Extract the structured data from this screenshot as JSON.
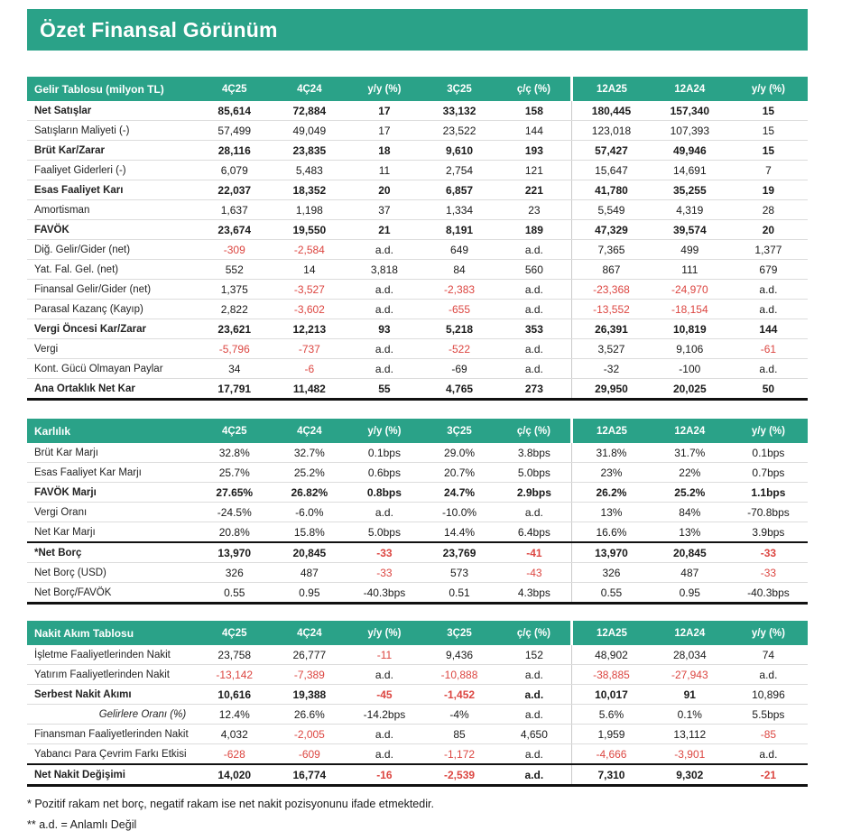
{
  "title": "Özet Finansal Görünüm",
  "colors": {
    "accent_teal": "#2AA288",
    "negative_red": "#DC4641",
    "border_dark": "#111111",
    "border_light": "#DCDCDC"
  },
  "columns": [
    "4Ç25",
    "4Ç24",
    "y/y (%)",
    "3Ç25",
    "ç/ç (%)",
    "12A25",
    "12A24",
    "y/y (%)"
  ],
  "tables": [
    {
      "name": "Gelir Tablosu (milyon TL)",
      "rows": [
        {
          "label": "Net Satışlar",
          "bold": true,
          "values": [
            "85,614",
            "72,884",
            "17",
            "33,132",
            "158",
            "180,445",
            "157,340",
            "15"
          ]
        },
        {
          "label": "Satışların Maliyeti (-)",
          "values": [
            "57,499",
            "49,049",
            "17",
            "23,522",
            "144",
            "123,018",
            "107,393",
            "15"
          ]
        },
        {
          "label": "Brüt Kar/Zarar",
          "bold": true,
          "values": [
            "28,116",
            "23,835",
            "18",
            "9,610",
            "193",
            "57,427",
            "49,946",
            "15"
          ]
        },
        {
          "label": "Faaliyet Giderleri (-)",
          "values": [
            "6,079",
            "5,483",
            "11",
            "2,754",
            "121",
            "15,647",
            "14,691",
            "7"
          ]
        },
        {
          "label": "Esas Faaliyet Karı",
          "bold": true,
          "values": [
            "22,037",
            "18,352",
            "20",
            "6,857",
            "221",
            "41,780",
            "35,255",
            "19"
          ]
        },
        {
          "label": "Amortisman",
          "values": [
            "1,637",
            "1,198",
            "37",
            "1,334",
            "23",
            "5,549",
            "4,319",
            "28"
          ]
        },
        {
          "label": "FAVÖK",
          "bold": true,
          "values": [
            "23,674",
            "19,550",
            "21",
            "8,191",
            "189",
            "47,329",
            "39,574",
            "20"
          ]
        },
        {
          "label": "Diğ. Gelir/Gider (net)",
          "values": [
            "-309",
            "-2,584",
            "a.d.",
            "649",
            "a.d.",
            "7,365",
            "499",
            "1,377"
          ],
          "red": [
            0,
            1
          ]
        },
        {
          "label": "Yat. Fal. Gel. (net)",
          "values": [
            "552",
            "14",
            "3,818",
            "84",
            "560",
            "867",
            "111",
            "679"
          ]
        },
        {
          "label": "Finansal Gelir/Gider (net)",
          "values": [
            "1,375",
            "-3,527",
            "a.d.",
            "-2,383",
            "a.d.",
            "-23,368",
            "-24,970",
            "a.d."
          ],
          "red": [
            1,
            3,
            5,
            6
          ]
        },
        {
          "label": "Parasal Kazanç (Kayıp)",
          "values": [
            "2,822",
            "-3,602",
            "a.d.",
            "-655",
            "a.d.",
            "-13,552",
            "-18,154",
            "a.d."
          ],
          "red": [
            1,
            3,
            5,
            6
          ]
        },
        {
          "label": "Vergi Öncesi Kar/Zarar",
          "bold": true,
          "values": [
            "23,621",
            "12,213",
            "93",
            "5,218",
            "353",
            "26,391",
            "10,819",
            "144"
          ]
        },
        {
          "label": "Vergi",
          "values": [
            "-5,796",
            "-737",
            "a.d.",
            "-522",
            "a.d.",
            "3,527",
            "9,106",
            "-61"
          ],
          "red": [
            0,
            1,
            3,
            7
          ]
        },
        {
          "label": "Kont. Gücü Olmayan Paylar",
          "values": [
            "34",
            "-6",
            "a.d.",
            "-69",
            "a.d.",
            "-32",
            "-100",
            "a.d."
          ],
          "red": [
            1
          ]
        },
        {
          "label": "Ana Ortaklık Net Kar",
          "bold": true,
          "values": [
            "17,791",
            "11,482",
            "55",
            "4,765",
            "273",
            "29,950",
            "20,025",
            "50"
          ]
        }
      ]
    },
    {
      "name": "Karlılık",
      "rows": [
        {
          "label": "Brüt Kar Marjı",
          "values": [
            "32.8%",
            "32.7%",
            "0.1bps",
            "29.0%",
            "3.8bps",
            "31.8%",
            "31.7%",
            "0.1bps"
          ]
        },
        {
          "label": "Esas Faaliyet Kar Marjı",
          "values": [
            "25.7%",
            "25.2%",
            "0.6bps",
            "20.7%",
            "5.0bps",
            "23%",
            "22%",
            "0.7bps"
          ]
        },
        {
          "label": "FAVÖK Marjı",
          "bold": true,
          "values": [
            "27.65%",
            "26.82%",
            "0.8bps",
            "24.7%",
            "2.9bps",
            "26.2%",
            "25.2%",
            "1.1bps"
          ]
        },
        {
          "label": "Vergi Oranı",
          "values": [
            "-24.5%",
            "-6.0%",
            "a.d.",
            "-10.0%",
            "a.d.",
            "13%",
            "84%",
            "-70.8bps"
          ]
        },
        {
          "label": "Net Kar Marjı",
          "values": [
            "20.8%",
            "15.8%",
            "5.0bps",
            "14.4%",
            "6.4bps",
            "16.6%",
            "13%",
            "3.9bps"
          ]
        },
        {
          "label": "*Net Borç",
          "bold": true,
          "septop": true,
          "values": [
            "13,970",
            "20,845",
            "-33",
            "23,769",
            "-41",
            "13,970",
            "20,845",
            "-33"
          ],
          "red": [
            2,
            4,
            7
          ]
        },
        {
          "label": "Net Borç (USD)",
          "values": [
            "326",
            "487",
            "-33",
            "573",
            "-43",
            "326",
            "487",
            "-33"
          ],
          "red": [
            2,
            4,
            7
          ]
        },
        {
          "label": "Net Borç/FAVÖK",
          "values": [
            "0.55",
            "0.95",
            "-40.3bps",
            "0.51",
            "4.3bps",
            "0.55",
            "0.95",
            "-40.3bps"
          ]
        }
      ]
    },
    {
      "name": "Nakit Akım Tablosu",
      "rows": [
        {
          "label": "İşletme Faaliyetlerinden Nakit",
          "values": [
            "23,758",
            "26,777",
            "-11",
            "9,436",
            "152",
            "48,902",
            "28,034",
            "74"
          ],
          "red": [
            2
          ]
        },
        {
          "label": "Yatırım Faaliyetlerinden Nakit",
          "values": [
            "-13,142",
            "-7,389",
            "a.d.",
            "-10,888",
            "a.d.",
            "-38,885",
            "-27,943",
            "a.d."
          ],
          "red": [
            0,
            1,
            3,
            5,
            6
          ]
        },
        {
          "label": "Serbest Nakit Akımı",
          "bold": true,
          "values": [
            "10,616",
            "19,388",
            "-45",
            "-1,452",
            "a.d.",
            "10,017",
            "91",
            "10,896"
          ],
          "red": [
            2,
            3
          ],
          "normal": [
            7
          ]
        },
        {
          "label": "Gelirlere Oranı (%)",
          "label_italic": true,
          "values": [
            "12.4%",
            "26.6%",
            "-14.2bps",
            "-4%",
            "a.d.",
            "5.6%",
            "0.1%",
            "5.5bps"
          ]
        },
        {
          "label": "Finansman Faaliyetlerinden Nakit",
          "values": [
            "4,032",
            "-2,005",
            "a.d.",
            "85",
            "4,650",
            "1,959",
            "13,112",
            "-85"
          ],
          "red": [
            1,
            7
          ]
        },
        {
          "label": "Yabancı Para Çevrim Farkı Etkisi",
          "values": [
            "-628",
            "-609",
            "a.d.",
            "-1,172",
            "a.d.",
            "-4,666",
            "-3,901",
            "a.d."
          ],
          "red": [
            0,
            1,
            3,
            5,
            6
          ]
        },
        {
          "label": "Net Nakit Değişimi",
          "bold": true,
          "septop": true,
          "values": [
            "14,020",
            "16,774",
            "-16",
            "-2,539",
            "a.d.",
            "7,310",
            "9,302",
            "-21"
          ],
          "red": [
            2,
            3,
            7
          ]
        }
      ]
    }
  ],
  "footnotes": [
    "* Pozitif rakam net borç, negatif rakam ise net nakit pozisyonunu ifade etmektedir.",
    "** a.d. = Anlamlı Değil"
  ]
}
